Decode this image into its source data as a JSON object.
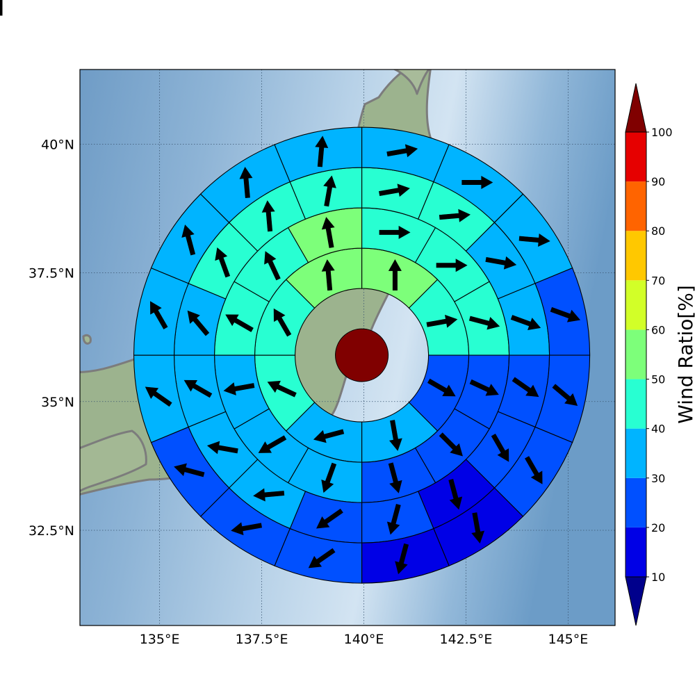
{
  "chart_data": {
    "type": "heatmap",
    "title": "",
    "projection": "polar-sector grid on a lat/lon map",
    "grid": true,
    "x_axis": {
      "ticks": [
        135,
        137.5,
        140,
        142.5,
        145
      ],
      "tick_labels": [
        "135°E",
        "137.5°E",
        "140°E",
        "142.5°E",
        "145°E"
      ],
      "range_deg_E": [
        133.05,
        146.15
      ]
    },
    "y_axis": {
      "ticks": [
        32.5,
        35,
        37.5,
        40
      ],
      "tick_labels": [
        "32.5°N",
        "35°N",
        "37.5°N",
        "40°N"
      ],
      "range_deg_N": [
        30.65,
        41.45
      ]
    },
    "center": {
      "lon": 139.95,
      "lat": 35.9,
      "value_pct": 100
    },
    "colorbar": {
      "label": "Wind Ratio[%]",
      "boundaries": [
        10,
        20,
        30,
        40,
        50,
        60,
        70,
        80,
        90,
        100
      ],
      "tick_labels": [
        "10",
        "20",
        "30",
        "40",
        "50",
        "60",
        "70",
        "80",
        "90",
        "100"
      ],
      "colors": [
        "#0000e6",
        "#0050ff",
        "#00b4ff",
        "#28ffd2",
        "#7dff7a",
        "#d2ff28",
        "#ffc800",
        "#ff6400",
        "#e60000"
      ],
      "under_color": "#00008c",
      "over_color": "#800000",
      "extend": "both"
    },
    "rings": [
      {
        "ring": 1,
        "sectors": 8,
        "values": [
          50,
          40,
          20,
          30,
          30,
          40,
          40,
          50
        ],
        "arrow_dir_deg": [
          0,
          80,
          120,
          170,
          255,
          295,
          330,
          355
        ]
      },
      {
        "ring": 2,
        "sectors": 12,
        "values": [
          40,
          40,
          40,
          20,
          20,
          20,
          30,
          30,
          30,
          40,
          40,
          50
        ],
        "arrow_dir_deg": [
          90,
          90,
          105,
          115,
          135,
          165,
          200,
          240,
          260,
          300,
          335,
          350
        ]
      },
      {
        "ring": 3,
        "sectors": 16,
        "values": [
          40,
          40,
          30,
          30,
          20,
          20,
          10,
          20,
          20,
          30,
          30,
          30,
          30,
          40,
          40,
          40
        ],
        "arrow_dir_deg": [
          80,
          85,
          100,
          110,
          125,
          150,
          165,
          195,
          235,
          265,
          280,
          300,
          320,
          340,
          355,
          10
        ]
      },
      {
        "ring": 4,
        "sectors": 16,
        "values": [
          30,
          30,
          30,
          20,
          20,
          20,
          10,
          10,
          20,
          20,
          20,
          30,
          30,
          30,
          30,
          30
        ],
        "arrow_dir_deg": [
          80,
          90,
          95,
          110,
          130,
          150,
          170,
          195,
          235,
          260,
          285,
          305,
          330,
          345,
          355,
          5
        ]
      },
      {
        "ring": 5,
        "sectors": 20,
        "values": [
          30,
          30,
          20,
          20,
          20,
          20,
          10,
          10,
          10,
          10,
          10,
          10,
          20,
          20,
          20,
          30,
          30,
          30,
          30,
          30
        ],
        "arrow_dir_deg": [
          80,
          85,
          95,
          100,
          120,
          140,
          150,
          160,
          170,
          185,
          200,
          235,
          255,
          285,
          300,
          320,
          335,
          350,
          0,
          10
        ]
      }
    ]
  }
}
